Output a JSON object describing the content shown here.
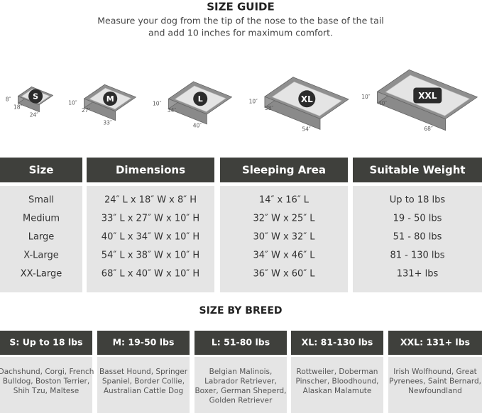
{
  "header": {
    "title": "SIZE GUIDE",
    "subtitle_lines": [
      "Measure your dog from the tip of the nose to the base of the tail",
      "and add 10 inches for maximum comfort."
    ]
  },
  "beds": [
    {
      "label": "S",
      "height": "8″",
      "depth": "18″",
      "width": "24″"
    },
    {
      "label": "M",
      "height": "10″",
      "depth": "27″",
      "width": "33″"
    },
    {
      "label": "L",
      "height": "10″",
      "depth": "34″",
      "width": "40″"
    },
    {
      "label": "XL",
      "height": "10″",
      "depth": "38″",
      "width": "54″"
    },
    {
      "label": "XXL",
      "height": "10″",
      "depth": "40″",
      "width": "68″"
    }
  ],
  "size_table": {
    "columns": [
      "Size",
      "Dimensions",
      "Sleeping Area",
      "Suitable Weight"
    ],
    "rows": [
      [
        "Small",
        "24″ L x 18″ W x 8″ H",
        "14″ x 16″ L",
        "Up to 18 lbs"
      ],
      [
        "Medium",
        "33″ L x 27″ W x 10″ H",
        "32″ W x 25″ L",
        "19 - 50 lbs"
      ],
      [
        "Large",
        "40″ L x 34″ W x 10″ H",
        "30″ W x 32″ L",
        "51 - 80 lbs"
      ],
      [
        "X-Large",
        "54″ L x 38″ W x 10″ H",
        "34″ W x 46″ L",
        "81 - 130 lbs"
      ],
      [
        "XX-Large",
        "68″ L x 40″ W x 10″ H",
        "36″ W x 60″ L",
        "131+ lbs"
      ]
    ]
  },
  "breed_section": {
    "title": "SIZE BY BREED",
    "columns": [
      {
        "header": "S: Up to 18 lbs",
        "lines": [
          "Dachshund, Corgi, French",
          "Bulldog, Boston Terrier,",
          "Shih Tzu, Maltese"
        ]
      },
      {
        "header": "M: 19-50 lbs",
        "lines": [
          "Basset Hound, Springer",
          "Spaniel, Border Collie,",
          "Australian Cattle Dog"
        ]
      },
      {
        "header": "L: 51-80 lbs",
        "lines": [
          "Belgian Malinois,",
          "Labrador Retriever,",
          "Boxer, German Sheperd,",
          "Golden Retriever"
        ]
      },
      {
        "header": "XL: 81-130 lbs",
        "lines": [
          "Rottweiler, Doberman",
          "Pinscher, Bloodhound,",
          "Alaskan Malamute"
        ]
      },
      {
        "header": "XXL: 131+ lbs",
        "lines": [
          "Irish Wolfhound, Great",
          "Pyrenees, Saint Bernard,",
          "Newfoundland"
        ]
      }
    ]
  }
}
